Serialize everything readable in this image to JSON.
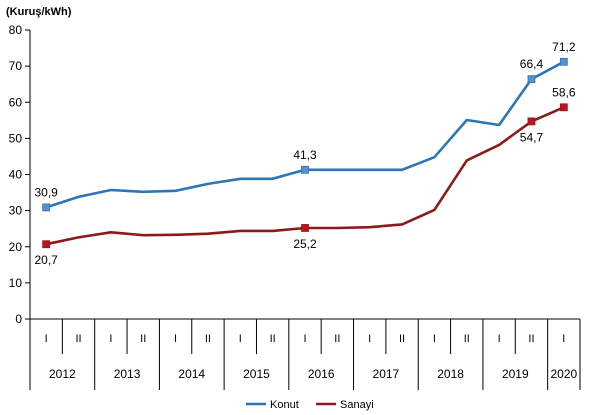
{
  "chart_data": {
    "type": "line",
    "ylabel": "(Kuruş/kWh)",
    "ylim": [
      0,
      80
    ],
    "yticks": [
      "0",
      "10",
      "20",
      "30",
      "40",
      "50",
      "60",
      "70",
      "80"
    ],
    "periods": [
      "I",
      "II",
      "I",
      "II",
      "I",
      "II",
      "I",
      "II",
      "I",
      "II",
      "I",
      "II",
      "I",
      "II",
      "I",
      "II",
      "I"
    ],
    "years": [
      "2012",
      "2013",
      "2014",
      "2015",
      "2016",
      "2017",
      "2018",
      "2019",
      "2020"
    ],
    "grid": false,
    "legend_position": "bottom-center",
    "series": [
      {
        "name": "Konut",
        "color": "#2e75b6",
        "marker_color": "#5b8fc9",
        "values": [
          30.9,
          33.8,
          35.7,
          35.2,
          35.5,
          37.4,
          38.8,
          38.8,
          41.3,
          41.3,
          41.3,
          41.3,
          44.8,
          55.1,
          53.7,
          66.4,
          71.2
        ],
        "labels": [
          {
            "index": 0,
            "text": "30,9",
            "pos": "above"
          },
          {
            "index": 8,
            "text": "41,3",
            "pos": "above"
          },
          {
            "index": 15,
            "text": "66,4",
            "pos": "above"
          },
          {
            "index": 16,
            "text": "71,2",
            "pos": "above"
          }
        ],
        "markers": [
          0,
          8,
          15,
          16
        ]
      },
      {
        "name": "Sanayi",
        "color": "#8b1a1a",
        "marker_color": "#c0141b",
        "values": [
          20.7,
          22.6,
          24.0,
          23.2,
          23.3,
          23.6,
          24.4,
          24.4,
          25.2,
          25.2,
          25.4,
          26.2,
          30.2,
          43.9,
          48.2,
          54.7,
          58.6
        ],
        "labels": [
          {
            "index": 0,
            "text": "20,7",
            "pos": "below"
          },
          {
            "index": 8,
            "text": "25,2",
            "pos": "below"
          },
          {
            "index": 15,
            "text": "54,7",
            "pos": "below"
          },
          {
            "index": 16,
            "text": "58,6",
            "pos": "above"
          }
        ],
        "markers": [
          0,
          8,
          15,
          16
        ]
      }
    ]
  }
}
